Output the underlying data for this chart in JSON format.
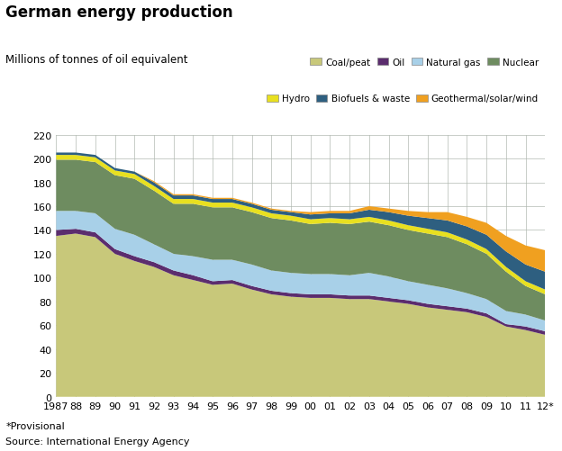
{
  "title": "German energy production",
  "ylabel": "Millions of tonnes of oil equivalent",
  "footnote1": "*Provisional",
  "footnote2": "Source: International Energy Agency",
  "years": [
    1987,
    1988,
    1989,
    1990,
    1991,
    1992,
    1993,
    1994,
    1995,
    1996,
    1997,
    1998,
    1999,
    2000,
    2001,
    2002,
    2003,
    2004,
    2005,
    2006,
    2007,
    2008,
    2009,
    2010,
    2011,
    2012
  ],
  "xlabels": [
    "1987",
    "88",
    "89",
    "90",
    "91",
    "92",
    "93",
    "94",
    "95",
    "96",
    "97",
    "98",
    "99",
    "00",
    "01",
    "02",
    "03",
    "04",
    "05",
    "06",
    "07",
    "08",
    "09",
    "10",
    "11",
    "12*"
  ],
  "ylim": [
    0,
    220
  ],
  "yticks": [
    0,
    20,
    40,
    60,
    80,
    100,
    120,
    140,
    160,
    180,
    200,
    220
  ],
  "series": {
    "Coal/peat": [
      135,
      137,
      134,
      120,
      114,
      109,
      102,
      98,
      94,
      95,
      90,
      86,
      84,
      83,
      83,
      82,
      82,
      80,
      78,
      75,
      73,
      71,
      67,
      59,
      56,
      52
    ],
    "Oil": [
      5,
      4,
      4,
      4,
      4,
      4,
      4,
      4,
      3,
      3,
      3,
      3,
      3,
      3,
      3,
      3,
      3,
      3,
      3,
      3,
      3,
      3,
      3,
      2,
      3,
      3
    ],
    "Natural gas": [
      16,
      15,
      16,
      17,
      18,
      15,
      14,
      16,
      18,
      17,
      18,
      17,
      17,
      17,
      17,
      17,
      19,
      18,
      16,
      16,
      15,
      13,
      12,
      11,
      10,
      9
    ],
    "Nuclear": [
      43,
      43,
      43,
      45,
      47,
      45,
      42,
      44,
      44,
      44,
      44,
      44,
      44,
      42,
      43,
      43,
      43,
      43,
      43,
      43,
      43,
      41,
      38,
      33,
      24,
      22
    ],
    "Hydro": [
      4,
      4,
      4,
      4,
      4,
      4,
      4,
      4,
      4,
      4,
      4,
      4,
      4,
      4,
      4,
      4,
      4,
      4,
      4,
      4,
      4,
      4,
      4,
      4,
      4,
      4
    ],
    "Biofuels & waste": [
      2,
      2,
      2,
      2,
      2,
      3,
      3,
      3,
      3,
      3,
      3,
      3,
      3,
      4,
      4,
      5,
      6,
      7,
      8,
      9,
      10,
      11,
      12,
      13,
      14,
      15
    ],
    "Geothermal/solar/wind": [
      0,
      0,
      0,
      0,
      0,
      1,
      1,
      1,
      1,
      1,
      1,
      1,
      1,
      2,
      2,
      2,
      3,
      3,
      4,
      5,
      7,
      8,
      10,
      13,
      16,
      18
    ]
  },
  "colors": {
    "Coal/peat": "#c8c87a",
    "Oil": "#5b2d6e",
    "Natural gas": "#a8d0e8",
    "Nuclear": "#6e8c60",
    "Hydro": "#e8e020",
    "Biofuels & waste": "#2e5f80",
    "Geothermal/solar/wind": "#f0a020"
  },
  "stack_order": [
    "Coal/peat",
    "Oil",
    "Natural gas",
    "Nuclear",
    "Hydro",
    "Biofuels & waste",
    "Geothermal/solar/wind"
  ],
  "legend_row1": [
    "Coal/peat",
    "Oil",
    "Natural gas",
    "Nuclear"
  ],
  "legend_row2": [
    "Hydro",
    "Biofuels & waste",
    "Geothermal/solar/wind"
  ],
  "bg_color": "#ffffff",
  "grid_color": "#b0b8b0"
}
